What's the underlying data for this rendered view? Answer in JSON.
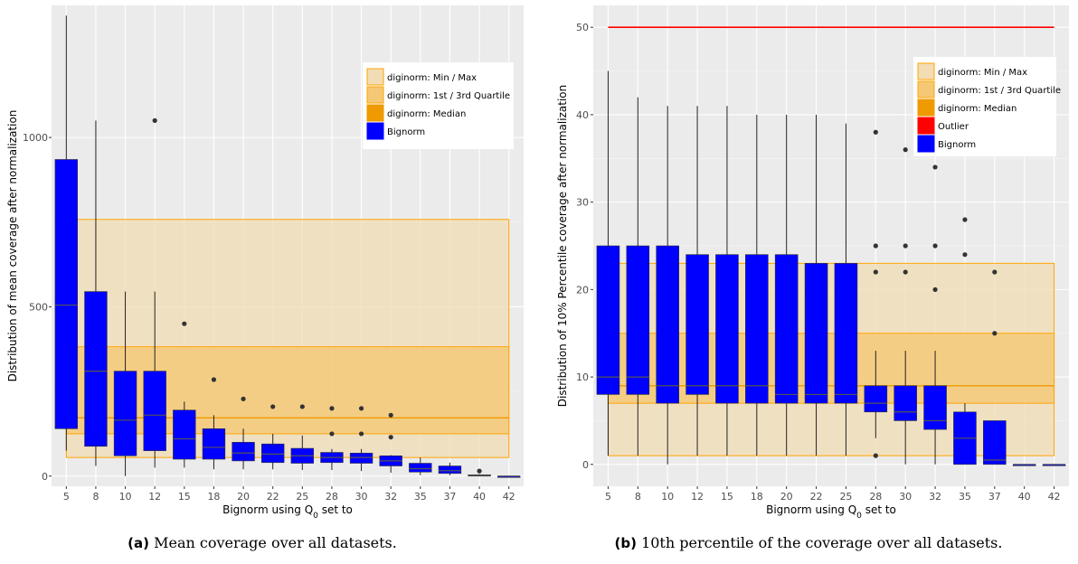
{
  "colors": {
    "panel_bg": "#ebebeb",
    "grid": "#ffffff",
    "bignorm": "#0000ff",
    "band_minmax": "#f2dcb4",
    "band_quartile": "#f5c876",
    "band_edge": "#ffa500",
    "median": "#ee9a00",
    "outlier": "#ff0000"
  },
  "chart_data": [
    {
      "type": "box",
      "xlabel_prefix": "Bignorm using Q",
      "xlabel_sub": "0",
      "xlabel_suffix": " set to",
      "ylabel": "Distribution of mean coverage after normalization",
      "categories": [
        "5",
        "8",
        "10",
        "12",
        "15",
        "18",
        "20",
        "22",
        "25",
        "28",
        "30",
        "32",
        "35",
        "37",
        "40",
        "42"
      ],
      "ylim": [
        -30,
        1390
      ],
      "yticks": [
        0,
        500,
        1000
      ],
      "ytick_labels": [
        "0",
        "500",
        "1000"
      ],
      "boxes": [
        {
          "q1": 140,
          "median": 505,
          "q3": 935,
          "lo": 75,
          "hi": 1360,
          "outliers": []
        },
        {
          "q1": 88,
          "median": 310,
          "q3": 545,
          "lo": 30,
          "hi": 1050,
          "outliers": []
        },
        {
          "q1": 60,
          "median": 165,
          "q3": 310,
          "lo": 0,
          "hi": 545,
          "outliers": []
        },
        {
          "q1": 75,
          "median": 180,
          "q3": 310,
          "lo": 25,
          "hi": 545,
          "outliers": [
            1050
          ]
        },
        {
          "q1": 50,
          "median": 110,
          "q3": 195,
          "lo": 25,
          "hi": 220,
          "outliers": [
            450
          ]
        },
        {
          "q1": 50,
          "median": 85,
          "q3": 140,
          "lo": 20,
          "hi": 180,
          "outliers": [
            285
          ]
        },
        {
          "q1": 45,
          "median": 68,
          "q3": 100,
          "lo": 20,
          "hi": 140,
          "outliers": [
            228
          ]
        },
        {
          "q1": 40,
          "median": 65,
          "q3": 95,
          "lo": 20,
          "hi": 125,
          "outliers": [
            205
          ]
        },
        {
          "q1": 38,
          "median": 60,
          "q3": 82,
          "lo": 18,
          "hi": 120,
          "outliers": [
            205
          ]
        },
        {
          "q1": 40,
          "median": 55,
          "q3": 70,
          "lo": 18,
          "hi": 80,
          "outliers": [
            125,
            200
          ]
        },
        {
          "q1": 38,
          "median": 55,
          "q3": 68,
          "lo": 15,
          "hi": 80,
          "outliers": [
            125,
            200
          ]
        },
        {
          "q1": 30,
          "median": 45,
          "q3": 60,
          "lo": 10,
          "hi": 62,
          "outliers": [
            115,
            180
          ]
        },
        {
          "q1": 12,
          "median": 22,
          "q3": 38,
          "lo": 3,
          "hi": 55,
          "outliers": []
        },
        {
          "q1": 8,
          "median": 16,
          "q3": 30,
          "lo": 2,
          "hi": 40,
          "outliers": []
        },
        {
          "q1": 0,
          "median": 2,
          "q3": 4,
          "lo": 0,
          "hi": 6,
          "outliers": [
            15
          ]
        },
        {
          "q1": 0,
          "median": 0,
          "q3": 0,
          "lo": 0,
          "hi": 0,
          "outliers": []
        }
      ],
      "diginorm": {
        "min": 55,
        "q1": 125,
        "median": 172,
        "q3": 382,
        "max": 758
      },
      "legend": [
        "diginorm: Min / Max",
        "diginorm: 1st / 3rd Quartile",
        "diginorm: Median",
        "Bignorm"
      ],
      "caption_label": "(a)",
      "caption_text": "Mean coverage over all datasets."
    },
    {
      "type": "box",
      "xlabel_prefix": "Bignorm using Q",
      "xlabel_sub": "0",
      "xlabel_suffix": " set to",
      "ylabel": "Distribution of 10% Percentile coverage after normalization",
      "categories": [
        "5",
        "8",
        "10",
        "12",
        "15",
        "18",
        "20",
        "22",
        "25",
        "28",
        "30",
        "32",
        "35",
        "37",
        "40",
        "42"
      ],
      "ylim": [
        -2.5,
        52.5
      ],
      "yticks": [
        0,
        10,
        20,
        30,
        40,
        50
      ],
      "ytick_labels": [
        "0",
        "10",
        "20",
        "30",
        "40",
        "50"
      ],
      "boxes": [
        {
          "q1": 8,
          "median": 10,
          "q3": 25,
          "lo": 1,
          "hi": 45,
          "outliers": []
        },
        {
          "q1": 8,
          "median": 10,
          "q3": 25,
          "lo": 1,
          "hi": 42,
          "outliers": []
        },
        {
          "q1": 7,
          "median": 9,
          "q3": 25,
          "lo": 0,
          "hi": 41,
          "outliers": []
        },
        {
          "q1": 8,
          "median": 9,
          "q3": 24,
          "lo": 1,
          "hi": 41,
          "outliers": []
        },
        {
          "q1": 7,
          "median": 9,
          "q3": 24,
          "lo": 1,
          "hi": 41,
          "outliers": []
        },
        {
          "q1": 7,
          "median": 9,
          "q3": 24,
          "lo": 1,
          "hi": 40,
          "outliers": []
        },
        {
          "q1": 7,
          "median": 8,
          "q3": 24,
          "lo": 1,
          "hi": 40,
          "outliers": []
        },
        {
          "q1": 7,
          "median": 8,
          "q3": 23,
          "lo": 1,
          "hi": 40,
          "outliers": []
        },
        {
          "q1": 7,
          "median": 8,
          "q3": 23,
          "lo": 1,
          "hi": 39,
          "outliers": []
        },
        {
          "q1": 6,
          "median": 7,
          "q3": 9,
          "lo": 3,
          "hi": 13,
          "outliers": [
            1,
            22,
            25,
            38
          ]
        },
        {
          "q1": 5,
          "median": 6,
          "q3": 9,
          "lo": 0,
          "hi": 13,
          "outliers": [
            22,
            25,
            36
          ]
        },
        {
          "q1": 4,
          "median": 5,
          "q3": 9,
          "lo": 0,
          "hi": 13,
          "outliers": [
            20,
            25,
            34
          ]
        },
        {
          "q1": 0,
          "median": 3,
          "q3": 6,
          "lo": 0,
          "hi": 7,
          "outliers": [
            24,
            28
          ]
        },
        {
          "q1": 0,
          "median": 0.5,
          "q3": 5,
          "lo": 0,
          "hi": 5,
          "outliers": [
            15,
            22
          ]
        },
        {
          "q1": 0,
          "median": 0,
          "q3": 0,
          "lo": 0,
          "hi": 0,
          "outliers": []
        },
        {
          "q1": 0,
          "median": 0,
          "q3": 0,
          "lo": 0,
          "hi": 0,
          "outliers": []
        }
      ],
      "diginorm": {
        "min": 1,
        "q1": 7,
        "median": 9,
        "q3": 15,
        "max": 23
      },
      "outlier_line": 50,
      "legend": [
        "diginorm: Min / Max",
        "diginorm: 1st / 3rd Quartile",
        "diginorm: Median",
        "Outlier",
        "Bignorm"
      ],
      "caption_label": "(b)",
      "caption_text": "10th percentile of the coverage over all datasets."
    }
  ]
}
